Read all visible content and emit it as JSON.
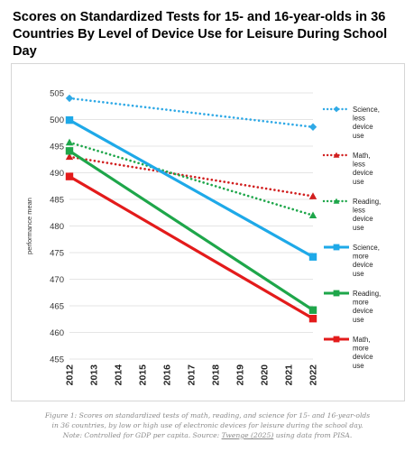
{
  "chart_data": {
    "type": "line",
    "title_lines": [
      "Scores on Standardized Tests for 15- and 16-year-olds in 36",
      "Countries By Level of Device Use for Leisure During School Day"
    ],
    "ylabel": "performance mean",
    "ylim": [
      455,
      505
    ],
    "yticks": [
      455,
      460,
      465,
      470,
      475,
      480,
      485,
      490,
      495,
      500,
      505
    ],
    "xticks": [
      "2012",
      "2013",
      "2014",
      "2015",
      "2016",
      "2017",
      "2018",
      "2019",
      "2020",
      "2021",
      "2022"
    ],
    "xlim": [
      2012,
      2022
    ],
    "grid": "horizontal",
    "legend_position": "right",
    "series": [
      {
        "name_lines": [
          "Science,",
          "less",
          "device",
          "use"
        ],
        "x": [
          2012,
          2022
        ],
        "values": [
          504.0,
          498.6
        ],
        "color": "#2fa9e6",
        "dash": "dotted",
        "marker": "diamond"
      },
      {
        "name_lines": [
          "Math,",
          "less",
          "device",
          "use"
        ],
        "x": [
          2012,
          2022
        ],
        "values": [
          493.0,
          485.6
        ],
        "color": "#d11f1f",
        "dash": "dotted",
        "marker": "triangle"
      },
      {
        "name_lines": [
          "Reading,",
          "less",
          "device",
          "use"
        ],
        "x": [
          2012,
          2022
        ],
        "values": [
          495.7,
          482.0
        ],
        "color": "#1ea64a",
        "dash": "dotted",
        "marker": "triangle"
      },
      {
        "name_lines": [
          "Science,",
          "more",
          "device",
          "use"
        ],
        "x": [
          2012,
          2022
        ],
        "values": [
          499.9,
          474.2
        ],
        "color": "#1ea9e8",
        "dash": "solid",
        "marker": "square"
      },
      {
        "name_lines": [
          "Reading,",
          "more",
          "device",
          "use"
        ],
        "x": [
          2012,
          2022
        ],
        "values": [
          494.1,
          464.2
        ],
        "color": "#1ea64a",
        "dash": "solid",
        "marker": "square"
      },
      {
        "name_lines": [
          "Math,",
          "more",
          "device",
          "use"
        ],
        "x": [
          2012,
          2022
        ],
        "values": [
          489.3,
          462.6
        ],
        "color": "#e31b1b",
        "dash": "solid",
        "marker": "square"
      }
    ]
  },
  "caption": {
    "line1": "Figure 1: Scores on standardized tests of math, reading, and science for 15- and 16-year-olds",
    "line2": "in 36 countries, by low or high use of electronic devices for leisure during the school day.",
    "line3_prefix": "Note: Controlled for GDP per capita. Source: ",
    "line3_source": "Twenge (2025)",
    "line3_suffix": " using data from PISA."
  }
}
